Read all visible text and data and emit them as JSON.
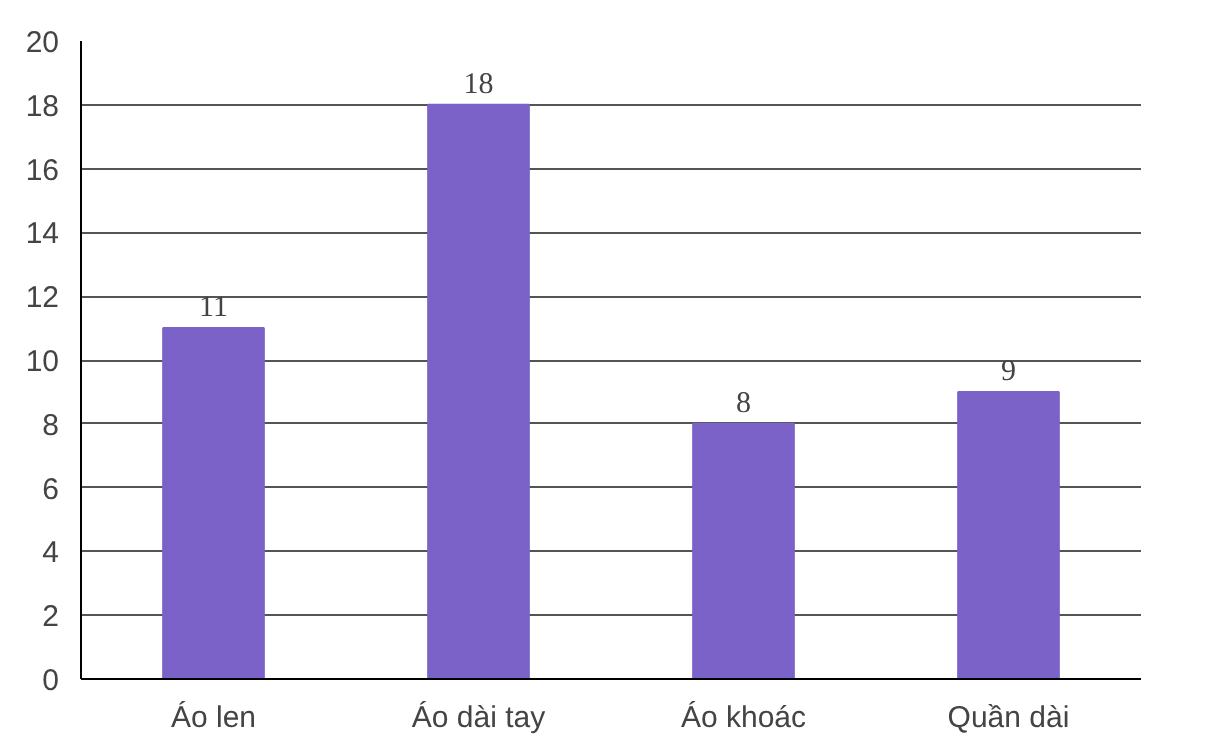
{
  "chart_data": {
    "type": "bar",
    "categories": [
      "Áo len",
      "Áo dài tay",
      "Áo khoác",
      "Quần dài"
    ],
    "values": [
      11,
      18,
      8,
      9
    ],
    "color": "#7b62c9",
    "ylim": [
      0,
      20
    ],
    "yticks": [
      0,
      2,
      4,
      6,
      8,
      10,
      12,
      14,
      16,
      18,
      20
    ],
    "grid": "y",
    "data_labels": true
  }
}
